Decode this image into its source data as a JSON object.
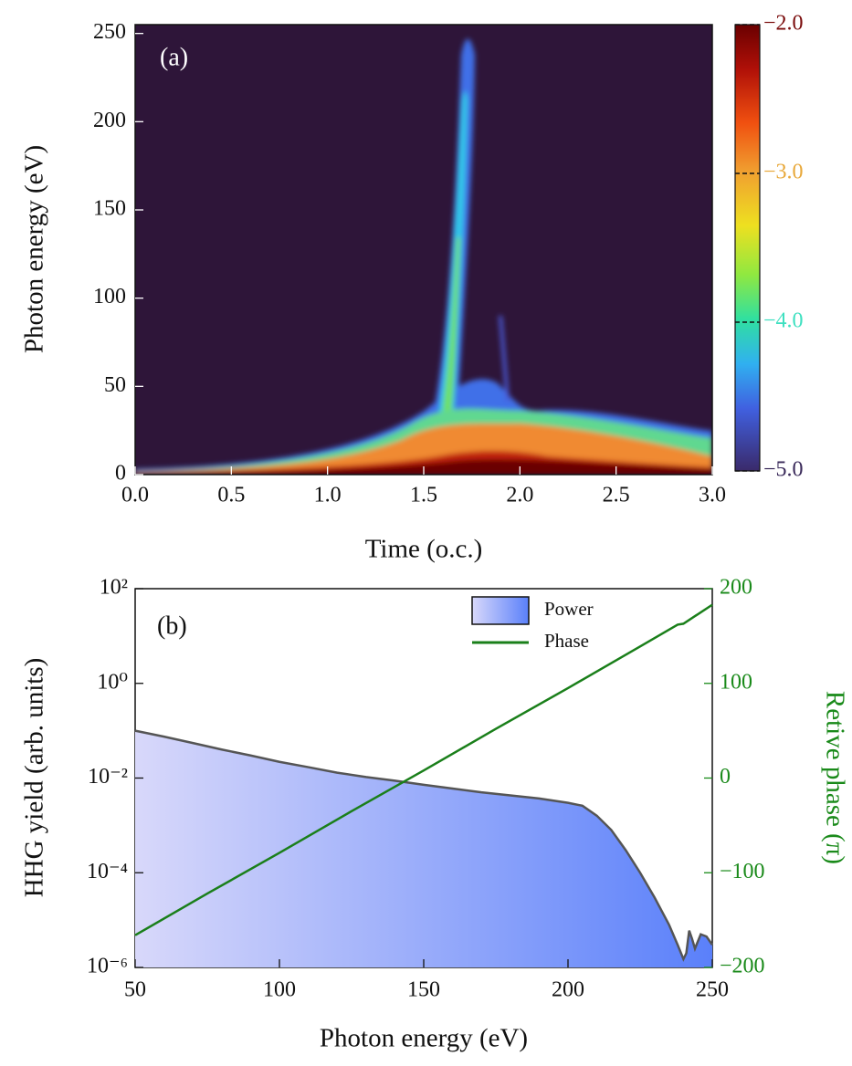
{
  "chart_data": [
    {
      "type": "heatmap",
      "annotation": "(a)",
      "xlabel": "Time (o.c.)",
      "ylabel": "Photon energy (eV)",
      "xlim": [
        0,
        3
      ],
      "xticks": [
        {
          "value": 0,
          "label": "0.0"
        },
        {
          "value": 0.5,
          "label": "0.5"
        },
        {
          "value": 1,
          "label": "1.0"
        },
        {
          "value": 1.5,
          "label": "1.5"
        },
        {
          "value": 2,
          "label": "2.0"
        },
        {
          "value": 2.5,
          "label": "2.5"
        },
        {
          "value": 3,
          "label": "3.0"
        }
      ],
      "ylim": [
        0,
        255
      ],
      "yticks": [
        0,
        50,
        100,
        150,
        200,
        250
      ],
      "colorbar": {
        "lim": [
          -5,
          -2
        ],
        "ticks": [
          {
            "value": -2,
            "label": "−2.0"
          },
          {
            "value": -3,
            "label": "−3.0"
          },
          {
            "value": -4,
            "label": "−4.0"
          },
          {
            "value": -5,
            "label": "−5.0"
          }
        ],
        "tick_colors": [
          "#7a0c0c",
          "#e8a83a",
          "#3ee0c0",
          "#3a2a5a"
        ]
      }
    },
    {
      "type": "area-line",
      "annotation": "(b)",
      "xlabel": "Photon energy (eV)",
      "ylabel": "HHG yield (arb. units)",
      "y2label": "Retive phase (π)",
      "xlim": [
        50,
        250
      ],
      "xticks": [
        50,
        100,
        150,
        200,
        250
      ],
      "log_y": true,
      "ylim": [
        1e-06,
        100
      ],
      "yticks": [
        {
          "value": 100,
          "label": "10²"
        },
        {
          "value": 1,
          "label": "10⁰"
        },
        {
          "value": 0.01,
          "label": "10⁻²"
        },
        {
          "value": 0.0001,
          "label": "10⁻⁴"
        },
        {
          "value": 1e-06,
          "label": "10⁻⁶"
        }
      ],
      "y2lim": [
        -200,
        200
      ],
      "y2ticks": [
        200,
        100,
        0,
        {
          "value": -100,
          "label": "−100"
        },
        {
          "value": -200,
          "label": "−200"
        }
      ],
      "y2color": "#1a8a1a",
      "legend": "upper center",
      "series": [
        {
          "name": "Power",
          "color": "#555555",
          "fill_colors": [
            "#d8d8fa",
            "#5a80fa"
          ],
          "x": [
            50,
            60,
            70,
            80,
            90,
            100,
            110,
            120,
            130,
            140,
            150,
            160,
            170,
            180,
            190,
            200,
            205,
            210,
            215,
            220,
            225,
            230,
            235,
            238,
            240,
            241,
            242,
            243,
            244,
            246,
            248,
            250
          ],
          "values": [
            0.1,
            0.075,
            0.055,
            0.04,
            0.03,
            0.022,
            0.017,
            0.013,
            0.0105,
            0.0088,
            0.0072,
            0.006,
            0.005,
            0.0043,
            0.0037,
            0.003,
            0.0026,
            0.0016,
            0.0008,
            0.0003,
            0.0001,
            3e-05,
            8e-06,
            3e-06,
            1.5e-06,
            2e-06,
            6e-06,
            4e-06,
            2.5e-06,
            5e-06,
            4.5e-06,
            3e-06
          ]
        },
        {
          "name": "Phase",
          "color": "#1a7f1a",
          "axis": "y2",
          "x": [
            50,
            75,
            100,
            125,
            150,
            175,
            200,
            225,
            238,
            240,
            250
          ],
          "values": [
            -166,
            -122,
            -79,
            -35,
            8,
            52,
            95,
            139,
            162,
            163,
            183
          ]
        }
      ]
    }
  ]
}
